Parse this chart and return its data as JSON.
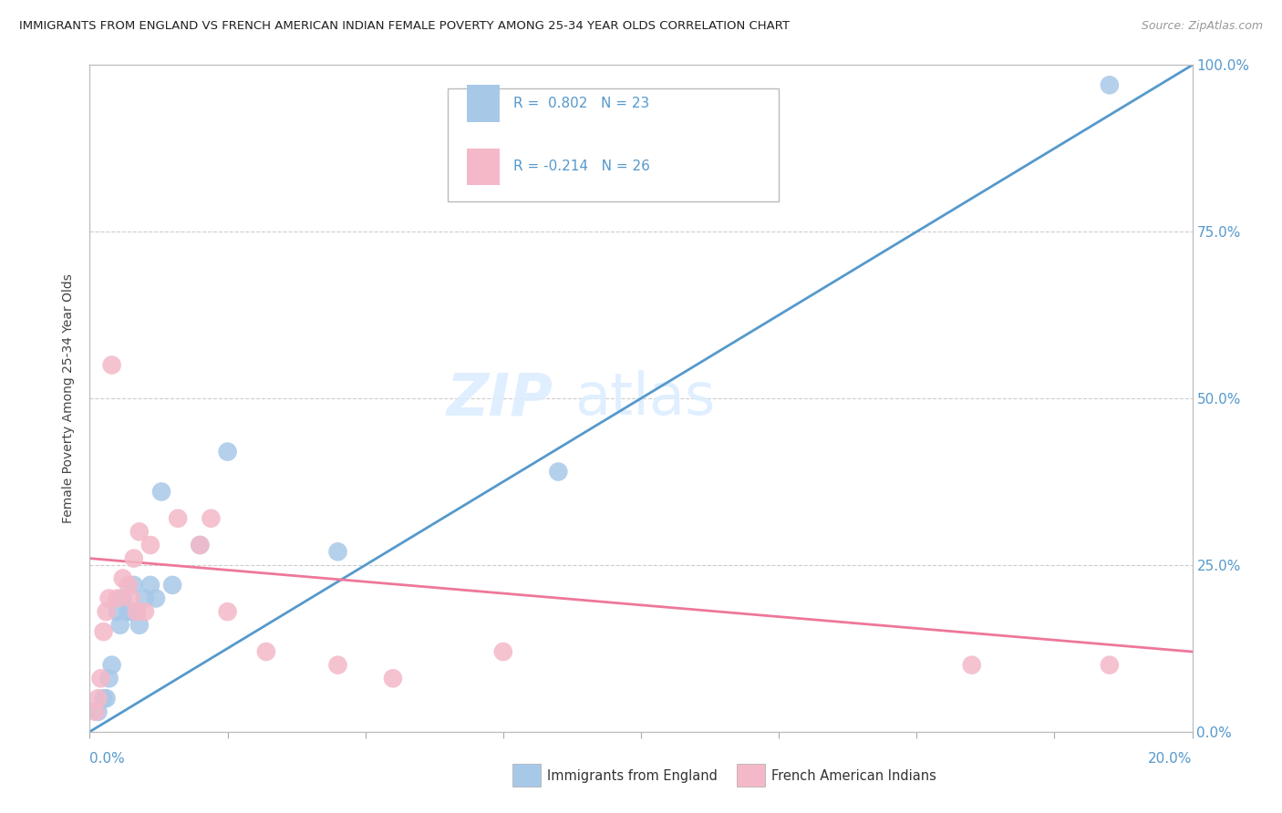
{
  "title": "IMMIGRANTS FROM ENGLAND VS FRENCH AMERICAN INDIAN FEMALE POVERTY AMONG 25-34 YEAR OLDS CORRELATION CHART",
  "source": "Source: ZipAtlas.com",
  "ylabel": "Female Poverty Among 25-34 Year Olds",
  "ytick_vals": [
    0,
    25,
    50,
    75,
    100
  ],
  "xmin": 0,
  "xmax": 20,
  "ymin": 0,
  "ymax": 100,
  "legend1_R": "R =  0.802",
  "legend1_N": "N = 23",
  "legend2_R": "R = -0.214",
  "legend2_N": "N = 26",
  "watermark_zip": "ZIP",
  "watermark_atlas": "atlas",
  "blue_color": "#a8c8e8",
  "pink_color": "#f4b8c8",
  "line_blue": "#5599cc",
  "line_pink": "#ee7799",
  "text_blue": "#5599cc",
  "blue_scatter_x": [
    0.15,
    0.25,
    0.3,
    0.35,
    0.4,
    0.5,
    0.55,
    0.6,
    0.7,
    0.75,
    0.8,
    0.85,
    0.9,
    1.0,
    1.1,
    1.2,
    1.3,
    1.5,
    2.0,
    2.5,
    4.5,
    8.5,
    18.5
  ],
  "blue_scatter_y": [
    3,
    5,
    5,
    8,
    10,
    18,
    16,
    20,
    18,
    18,
    22,
    18,
    16,
    20,
    22,
    20,
    36,
    22,
    28,
    42,
    27,
    39,
    97
  ],
  "pink_scatter_x": [
    0.1,
    0.15,
    0.2,
    0.25,
    0.3,
    0.35,
    0.4,
    0.5,
    0.6,
    0.7,
    0.75,
    0.8,
    0.85,
    0.9,
    1.0,
    1.1,
    1.6,
    2.0,
    2.2,
    2.5,
    3.2,
    4.5,
    5.5,
    7.5,
    16.0,
    18.5
  ],
  "pink_scatter_y": [
    3,
    5,
    8,
    15,
    18,
    20,
    55,
    20,
    23,
    22,
    20,
    26,
    18,
    30,
    18,
    28,
    32,
    28,
    32,
    18,
    12,
    10,
    8,
    12,
    10,
    10
  ],
  "blue_line_x": [
    0,
    20
  ],
  "blue_line_y": [
    0,
    100
  ],
  "pink_line_x": [
    0,
    20
  ],
  "pink_line_y": [
    26,
    12
  ]
}
